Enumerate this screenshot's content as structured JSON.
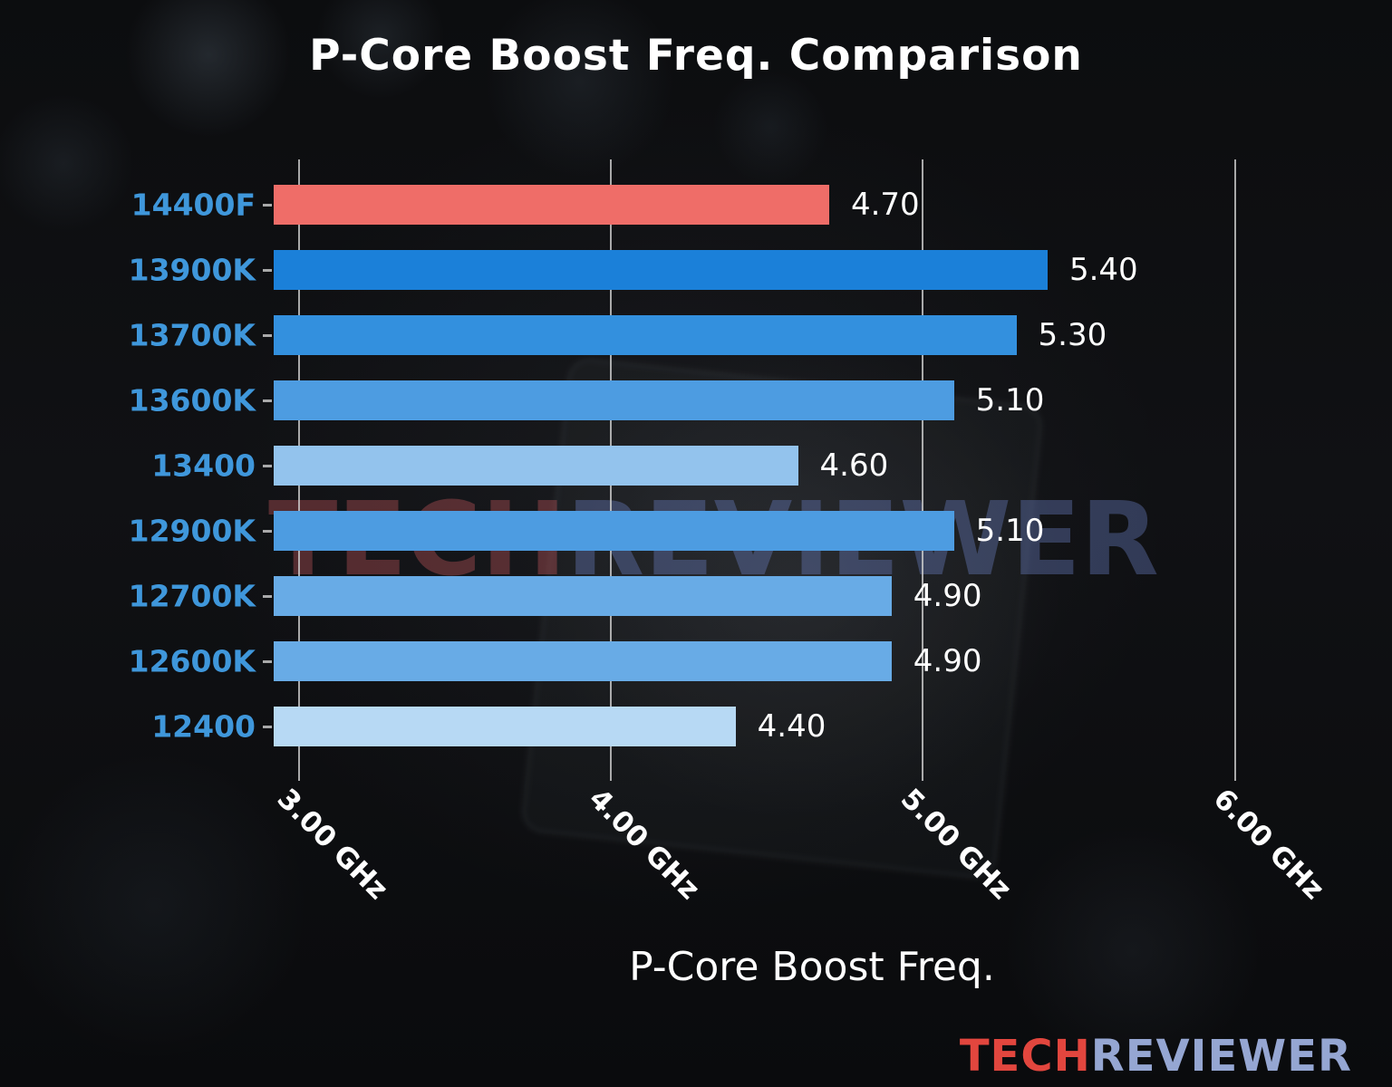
{
  "watermark": {
    "tech": "TECH",
    "reviewer": "REVIEWER"
  },
  "logo": {
    "tech": "TECH",
    "reviewer": "REVIEWER"
  },
  "chart_data": {
    "type": "bar",
    "orientation": "horizontal",
    "title": "P-Core Boost Freq. Comparison",
    "xlabel": "P-Core Boost Freq.",
    "categories": [
      "14400F",
      "13900K",
      "13700K",
      "13600K",
      "13400",
      "12900K",
      "12700K",
      "12600K",
      "12400"
    ],
    "values": [
      4.7,
      5.4,
      5.3,
      5.1,
      4.6,
      5.1,
      4.9,
      4.9,
      4.4
    ],
    "bar_colors": [
      "#ef6d68",
      "#1b80d9",
      "#3390de",
      "#4d9ce1",
      "#93c3ed",
      "#4d9ce1",
      "#68abe6",
      "#68abe6",
      "#b7d9f4"
    ],
    "highlight": {
      "category": "14400F",
      "color": "#ef6d68"
    },
    "xticks": [
      3,
      4,
      5,
      6
    ],
    "xtick_labels": [
      "3.00 GHz",
      "4.00 GHz",
      "5.00 GHz",
      "6.00 GHz"
    ],
    "xlim": [
      2.92,
      6.37
    ],
    "grid": true,
    "legend": null,
    "colors": {
      "category_label": "#3f97db",
      "value_label": "#ffffff",
      "grid_line": "#d0d0d0",
      "title": "#ffffff",
      "axis_label": "#ffffff",
      "background": "#0a0b0d"
    }
  }
}
